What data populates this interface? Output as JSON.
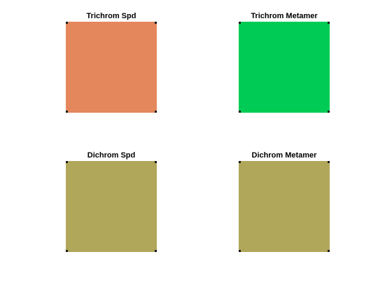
{
  "panels": [
    {
      "title": "Trichrom Spd",
      "color": "#e5875d"
    },
    {
      "title": "Trichrom Metamer",
      "color": "#00cc55"
    },
    {
      "title": "Dichrom Spd",
      "color": "#b0a75a"
    },
    {
      "title": "Dichrom Metamer",
      "color": "#b0a75a"
    }
  ]
}
